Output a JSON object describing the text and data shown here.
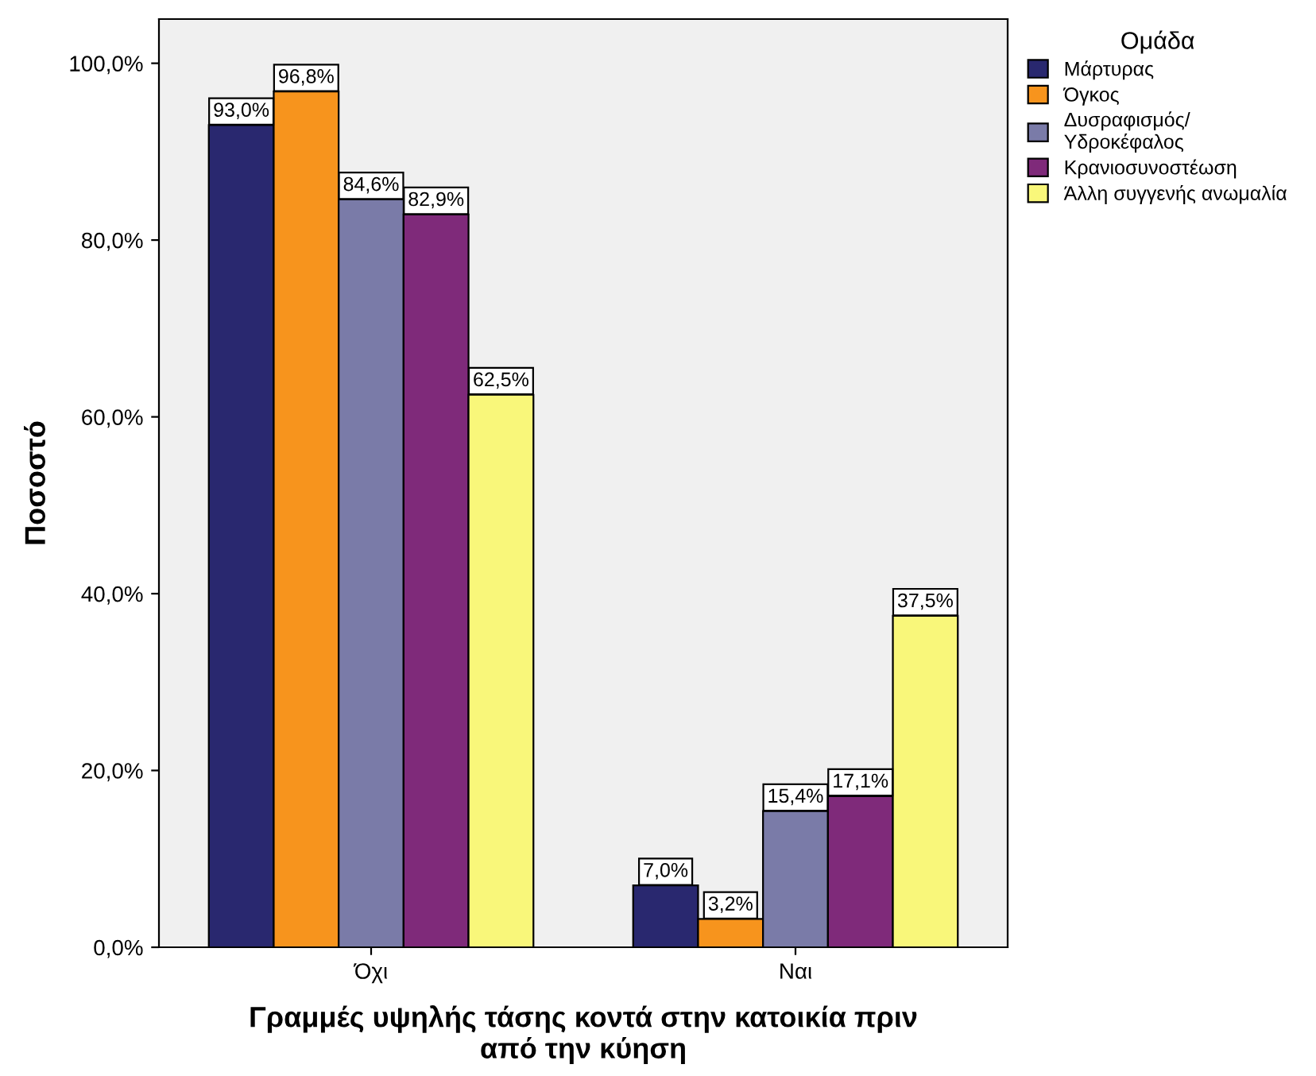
{
  "chart_data": {
    "type": "bar",
    "xlabel": "Γραμμές υψηλής τάσης κοντά στην κατοικία πριν\nαπό την κύηση",
    "ylabel": "Ποσοστό",
    "legend_title": "Ομάδα",
    "categories": [
      "Όχι",
      "Ναι"
    ],
    "series": [
      {
        "name": "Μάρτυρας",
        "color": "#29286f",
        "values": [
          93.0,
          7.0
        ],
        "value_labels": [
          "93,0%",
          "7,0%"
        ]
      },
      {
        "name": "Όγκος",
        "color": "#f7941d",
        "values": [
          96.8,
          3.2
        ],
        "value_labels": [
          "96,8%",
          "3,2%"
        ]
      },
      {
        "name": "Δυσραφισμός/\nΥδροκέφαλος",
        "color": "#7a7ba8",
        "values": [
          84.6,
          15.4
        ],
        "value_labels": [
          "84,6%",
          "15,4%"
        ]
      },
      {
        "name": "Κρανιοσυνοστέωση",
        "color": "#7f2a7a",
        "values": [
          82.9,
          17.1
        ],
        "value_labels": [
          "82,9%",
          "17,1%"
        ]
      },
      {
        "name": "Άλλη συγγενής ανωμαλία",
        "color": "#f9f77a",
        "values": [
          62.5,
          37.5
        ],
        "value_labels": [
          "62,5%",
          "37,5%"
        ]
      }
    ],
    "ylim": [
      0,
      105
    ],
    "yticks": [
      {
        "value": 0,
        "label": "0,0%"
      },
      {
        "value": 20,
        "label": "20,0%"
      },
      {
        "value": 40,
        "label": "40,0%"
      },
      {
        "value": 60,
        "label": "60,0%"
      },
      {
        "value": 80,
        "label": "80,0%"
      },
      {
        "value": 100,
        "label": "100,0%"
      }
    ],
    "grid": false,
    "legend": "right"
  }
}
